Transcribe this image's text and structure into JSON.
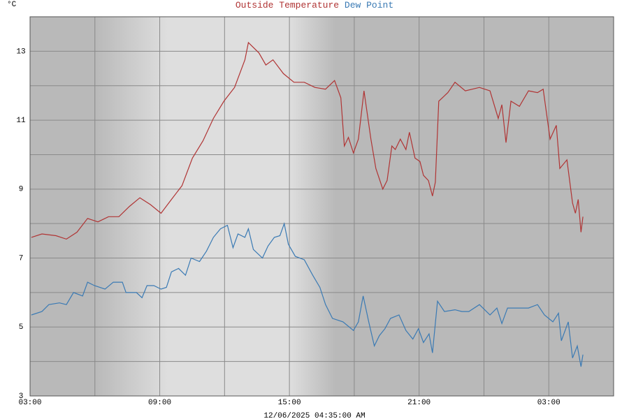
{
  "chart_data": {
    "type": "line",
    "title_parts": "series",
    "y_label": "°C",
    "footer": "12/06/2025 04:35:00 AM",
    "xlim": [
      0,
      27
    ],
    "xticks": [
      {
        "value": 0,
        "label": "03:00"
      },
      {
        "value": 6,
        "label": "09:00"
      },
      {
        "value": 12,
        "label": "15:00"
      },
      {
        "value": 18,
        "label": "21:00"
      },
      {
        "value": 24,
        "label": "03:00"
      }
    ],
    "xgrid": [
      3,
      9,
      15,
      21
    ],
    "ylim": [
      3,
      14
    ],
    "yticks": [
      3,
      5,
      7,
      9,
      11,
      13
    ],
    "ygrid": [
      4,
      6,
      8,
      10,
      12
    ],
    "grid": true,
    "series": [
      {
        "name": "Outside Temperature",
        "color": "#b03434",
        "x": [
          0.06,
          0.55,
          1.2,
          1.68,
          2.17,
          2.66,
          3.14,
          3.63,
          4.11,
          4.6,
          5.08,
          5.57,
          6.06,
          6.54,
          7.03,
          7.51,
          8.0,
          8.48,
          8.97,
          9.46,
          9.94,
          10.1,
          10.59,
          10.91,
          11.24,
          11.72,
          12.21,
          12.69,
          13.18,
          13.67,
          14.09,
          14.38,
          14.54,
          14.73,
          14.96,
          15.19,
          15.45,
          15.77,
          16.0,
          16.32,
          16.52,
          16.74,
          16.9,
          17.13,
          17.39,
          17.55,
          17.81,
          18.04,
          18.2,
          18.43,
          18.62,
          18.75,
          18.91,
          19.33,
          19.66,
          20.14,
          20.79,
          21.28,
          21.66,
          21.83,
          22.02,
          22.25,
          22.64,
          23.06,
          23.48,
          23.74,
          24.06,
          24.35,
          24.51,
          24.84,
          25.1,
          25.23,
          25.36,
          25.49,
          25.58
        ],
        "values": [
          7.6,
          7.7,
          7.65,
          7.55,
          7.75,
          8.15,
          8.05,
          8.2,
          8.2,
          8.5,
          8.75,
          8.55,
          8.3,
          8.7,
          9.1,
          9.9,
          10.4,
          11.05,
          11.55,
          11.95,
          12.75,
          13.25,
          12.95,
          12.6,
          12.75,
          12.35,
          12.1,
          12.1,
          11.95,
          11.9,
          12.15,
          11.65,
          10.25,
          10.5,
          10.05,
          10.45,
          11.85,
          10.45,
          9.6,
          9.0,
          9.25,
          10.25,
          10.15,
          10.45,
          10.15,
          10.65,
          9.9,
          9.8,
          9.4,
          9.25,
          8.8,
          9.2,
          11.55,
          11.8,
          12.1,
          11.85,
          11.95,
          11.85,
          11.05,
          11.45,
          10.35,
          11.55,
          11.4,
          11.85,
          11.8,
          11.9,
          10.45,
          10.85,
          9.6,
          9.85,
          8.6,
          8.3,
          8.7,
          7.75,
          8.2
        ]
      },
      {
        "name": "Dew Point",
        "color": "#3a7ab4",
        "x": [
          0.06,
          0.55,
          0.87,
          1.36,
          1.68,
          2.01,
          2.43,
          2.66,
          2.98,
          3.47,
          3.85,
          4.27,
          4.44,
          4.92,
          5.18,
          5.41,
          5.73,
          6.06,
          6.31,
          6.54,
          6.87,
          7.19,
          7.45,
          7.84,
          8.16,
          8.48,
          8.81,
          9.13,
          9.39,
          9.62,
          9.94,
          10.1,
          10.33,
          10.75,
          11.01,
          11.3,
          11.56,
          11.76,
          11.95,
          12.27,
          12.69,
          13.08,
          13.41,
          13.67,
          13.99,
          14.48,
          14.96,
          15.19,
          15.41,
          15.67,
          15.93,
          16.16,
          16.42,
          16.68,
          17.07,
          17.39,
          17.71,
          17.97,
          18.2,
          18.46,
          18.62,
          18.85,
          19.17,
          19.66,
          19.98,
          20.3,
          20.79,
          21.28,
          21.6,
          21.83,
          22.09,
          22.57,
          23.06,
          23.48,
          23.8,
          24.19,
          24.45,
          24.58,
          24.9,
          25.1,
          25.32,
          25.49,
          25.58
        ],
        "values": [
          5.35,
          5.45,
          5.65,
          5.7,
          5.65,
          6.0,
          5.9,
          6.3,
          6.2,
          6.1,
          6.3,
          6.3,
          6.0,
          6.0,
          5.85,
          6.2,
          6.2,
          6.1,
          6.15,
          6.6,
          6.7,
          6.5,
          7.0,
          6.9,
          7.2,
          7.6,
          7.85,
          7.95,
          7.3,
          7.7,
          7.6,
          7.85,
          7.25,
          7.0,
          7.35,
          7.6,
          7.65,
          8.0,
          7.4,
          7.05,
          6.95,
          6.5,
          6.15,
          5.65,
          5.25,
          5.15,
          4.9,
          5.15,
          5.9,
          5.15,
          4.45,
          4.75,
          4.95,
          5.25,
          5.35,
          4.9,
          4.65,
          4.95,
          4.55,
          4.8,
          4.25,
          5.75,
          5.45,
          5.5,
          5.45,
          5.45,
          5.65,
          5.35,
          5.55,
          5.1,
          5.55,
          5.55,
          5.55,
          5.65,
          5.35,
          5.15,
          5.4,
          4.6,
          5.15,
          4.1,
          4.45,
          3.85,
          4.2
        ]
      }
    ]
  }
}
